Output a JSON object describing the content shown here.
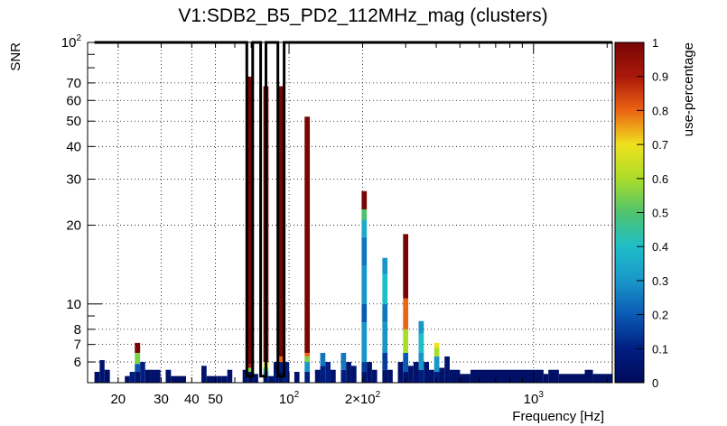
{
  "chart_data": {
    "type": "heatmap",
    "title": "V1:SDB2_B5_PD2_112MHz_mag (clusters)",
    "xlabel": "Frequency [Hz]",
    "ylabel": "SNR",
    "zlabel": "use-percentage",
    "x_scale": "log",
    "y_scale": "log",
    "xlim": [
      15,
      2100
    ],
    "ylim": [
      5,
      100
    ],
    "zlim": [
      0,
      1
    ],
    "grid": true,
    "x_ticks": [
      {
        "value": 20,
        "label": "20"
      },
      {
        "value": 30,
        "label": "30"
      },
      {
        "value": 40,
        "label": "40"
      },
      {
        "value": 50,
        "label": "50"
      },
      {
        "value": 100,
        "label": "10",
        "exp": "2"
      },
      {
        "value": 200,
        "label": "2×10",
        "exp": "2"
      },
      {
        "value": 1000,
        "label": "10",
        "exp": "3"
      }
    ],
    "y_ticks": [
      {
        "value": 6,
        "label": "6"
      },
      {
        "value": 7,
        "label": "7"
      },
      {
        "value": 8,
        "label": "8"
      },
      {
        "value": 10,
        "label": "10"
      },
      {
        "value": 20,
        "label": "20"
      },
      {
        "value": 30,
        "label": "30"
      },
      {
        "value": 40,
        "label": "40"
      },
      {
        "value": 50,
        "label": "50"
      },
      {
        "value": 60,
        "label": "60"
      },
      {
        "value": 70,
        "label": "70"
      },
      {
        "value": 100,
        "label": "10",
        "exp": "2"
      }
    ],
    "z_ticks": [
      0,
      0.1,
      0.2,
      0.3,
      0.4,
      0.5,
      0.6,
      0.7,
      0.8,
      0.9,
      1
    ],
    "columns": [
      {
        "x": [
          16.0,
          16.8
        ],
        "cells": [
          [
            5,
            5.5,
            0.03
          ]
        ]
      },
      {
        "x": [
          16.8,
          17.6
        ],
        "cells": [
          [
            5,
            6.1,
            0.05
          ]
        ]
      },
      {
        "x": [
          17.6,
          18.5
        ],
        "cells": [
          [
            5,
            5.6,
            0.03
          ]
        ]
      },
      {
        "x": [
          21.3,
          22.3
        ],
        "cells": [
          [
            5,
            5.3,
            0.03
          ]
        ]
      },
      {
        "x": [
          22.3,
          23.4
        ],
        "cells": [
          [
            5,
            5.5,
            0.1
          ]
        ]
      },
      {
        "x": [
          23.4,
          24.6
        ],
        "cells": [
          [
            5,
            5.5,
            0.05
          ],
          [
            5.5,
            5.9,
            0.2
          ],
          [
            5.9,
            6.5,
            0.55
          ],
          [
            6.5,
            7.1,
            1.0
          ]
        ]
      },
      {
        "x": [
          24.6,
          25.8
        ],
        "cells": [
          [
            5,
            6.0,
            0.1
          ]
        ]
      },
      {
        "x": [
          25.8,
          27.1
        ],
        "cells": [
          [
            5,
            5.6,
            0.03
          ]
        ]
      },
      {
        "x": [
          27.1,
          29.8
        ],
        "cells": [
          [
            5,
            5.6,
            0.04
          ]
        ]
      },
      {
        "x": [
          31.3,
          32.9
        ],
        "cells": [
          [
            5,
            5.6,
            0.04
          ]
        ]
      },
      {
        "x": [
          32.9,
          37.9
        ],
        "cells": [
          [
            5,
            5.3,
            0.03
          ]
        ]
      },
      {
        "x": [
          43.8,
          46.0
        ],
        "cells": [
          [
            5,
            5.8,
            0.04
          ]
        ]
      },
      {
        "x": [
          46.0,
          50.7
        ],
        "cells": [
          [
            5,
            5.3,
            0.03
          ]
        ]
      },
      {
        "x": [
          50.7,
          53.2
        ],
        "cells": [
          [
            5,
            5.3,
            0.03
          ]
        ]
      },
      {
        "x": [
          53.2,
          55.9
        ],
        "cells": [
          [
            5,
            5.3,
            0.03
          ]
        ]
      },
      {
        "x": [
          55.9,
          58.6
        ],
        "cells": [
          [
            5,
            5.6,
            0.04
          ]
        ]
      },
      {
        "x": [
          64.6,
          67.8
        ],
        "cells": [
          [
            5,
            5.6,
            0.05
          ]
        ]
      },
      {
        "x": [
          67.8,
          71.2
        ],
        "cells": [
          [
            5,
            5.5,
            0.04
          ],
          [
            5.5,
            5.7,
            0.55
          ],
          [
            5.7,
            5.9,
            0.9
          ],
          [
            5.9,
            74,
            1.0
          ]
        ]
      },
      {
        "x": [
          71.2,
          74.8
        ],
        "cells": [
          [
            5,
            5.4,
            0.03
          ]
        ]
      },
      {
        "x": [
          78.5,
          82.4
        ],
        "cells": [
          [
            5,
            5.3,
            0.1
          ],
          [
            5.3,
            5.5,
            0.3
          ],
          [
            5.5,
            5.7,
            0.5
          ],
          [
            5.7,
            6.0,
            0.7
          ],
          [
            6.0,
            68,
            1.0
          ]
        ]
      },
      {
        "x": [
          82.4,
          86.5
        ],
        "cells": [
          [
            5,
            5.3,
            0.03
          ]
        ]
      },
      {
        "x": [
          86.5,
          90.8
        ],
        "cells": [
          [
            5,
            5.5,
            0.1
          ],
          [
            5.5,
            6.0,
            0.04
          ]
        ]
      },
      {
        "x": [
          90.8,
          95.3
        ],
        "cells": [
          [
            5,
            5.5,
            0.04
          ],
          [
            5.5,
            6.0,
            0.1
          ],
          [
            6.0,
            6.3,
            0.8
          ],
          [
            6.3,
            68,
            1.0
          ]
        ]
      },
      {
        "x": [
          95.3,
          100.1
        ],
        "cells": [
          [
            5,
            6.0,
            0.1
          ]
        ]
      },
      {
        "x": [
          105.1,
          110.3
        ],
        "cells": [
          [
            5,
            5.5,
            0.04
          ]
        ]
      },
      {
        "x": [
          115.8,
          121.6
        ],
        "cells": [
          [
            5,
            5.5,
            0.1
          ],
          [
            5.5,
            6.0,
            0.3
          ],
          [
            6.0,
            6.3,
            0.55
          ],
          [
            6.3,
            6.5,
            0.8
          ],
          [
            6.5,
            52,
            1.0
          ]
        ]
      },
      {
        "x": [
          127.7,
          134.1
        ],
        "cells": [
          [
            5,
            5.6,
            0.04
          ]
        ]
      },
      {
        "x": [
          134.1,
          140.8
        ],
        "cells": [
          [
            5,
            5.8,
            0.1
          ],
          [
            5.8,
            6.5,
            0.25
          ]
        ]
      },
      {
        "x": [
          140.8,
          147.8
        ],
        "cells": [
          [
            5,
            6.0,
            0.1
          ]
        ]
      },
      {
        "x": [
          147.8,
          155.2
        ],
        "cells": [
          [
            5,
            5.6,
            0.04
          ]
        ]
      },
      {
        "x": [
          163.0,
          171.1
        ],
        "cells": [
          [
            5,
            5.6,
            0.1
          ],
          [
            5.6,
            6.5,
            0.25
          ]
        ]
      },
      {
        "x": [
          171.1,
          179.7
        ],
        "cells": [
          [
            5,
            6.0,
            0.05
          ]
        ]
      },
      {
        "x": [
          179.7,
          188.7
        ],
        "cells": [
          [
            5,
            5.8,
            0.04
          ]
        ]
      },
      {
        "x": [
          198.1,
          208.0
        ],
        "cells": [
          [
            5,
            5.5,
            0.05
          ],
          [
            5.5,
            6.0,
            0.15
          ],
          [
            6.0,
            8.5,
            0.3
          ],
          [
            8.5,
            10,
            0.2
          ],
          [
            10,
            14,
            0.3
          ],
          [
            14,
            18,
            0.25
          ],
          [
            18,
            21,
            0.35
          ],
          [
            21,
            23,
            0.5
          ],
          [
            23,
            27,
            1.0
          ]
        ]
      },
      {
        "x": [
          208.0,
          218.4
        ],
        "cells": [
          [
            5,
            6.0,
            0.04
          ]
        ]
      },
      {
        "x": [
          218.4,
          229.3
        ],
        "cells": [
          [
            5,
            5.6,
            0.04
          ]
        ]
      },
      {
        "x": [
          240.8,
          252.8
        ],
        "cells": [
          [
            5,
            5.6,
            0.05
          ],
          [
            5.6,
            6.5,
            0.15
          ],
          [
            6.5,
            8.5,
            0.3
          ],
          [
            8.5,
            10,
            0.25
          ],
          [
            10,
            13,
            0.4
          ],
          [
            13,
            15,
            0.3
          ]
        ]
      },
      {
        "x": [
          252.8,
          265.5
        ],
        "cells": [
          [
            5,
            5.6,
            0.04
          ]
        ]
      },
      {
        "x": [
          278.8,
          292.7
        ],
        "cells": [
          [
            5,
            6.0,
            0.04
          ]
        ]
      },
      {
        "x": [
          292.7,
          307.3
        ],
        "cells": [
          [
            5,
            5.5,
            0.05
          ],
          [
            5.5,
            6.5,
            0.2
          ],
          [
            6.5,
            8.0,
            0.6
          ],
          [
            8.0,
            10.5,
            0.8
          ],
          [
            10.5,
            18.5,
            1.0
          ]
        ]
      },
      {
        "x": [
          307.3,
          322.7
        ],
        "cells": [
          [
            5,
            5.8,
            0.04
          ]
        ]
      },
      {
        "x": [
          322.7,
          338.8
        ],
        "cells": [
          [
            5,
            6.0,
            0.04
          ]
        ]
      },
      {
        "x": [
          338.8,
          355.8
        ],
        "cells": [
          [
            5,
            5.6,
            0.1
          ],
          [
            5.6,
            6.5,
            0.3
          ],
          [
            6.5,
            7.7,
            0.4
          ],
          [
            7.7,
            8.6,
            0.3
          ]
        ]
      },
      {
        "x": [
          355.8,
          373.6
        ],
        "cells": [
          [
            5,
            6.0,
            0.05
          ]
        ]
      },
      {
        "x": [
          373.6,
          392.3
        ],
        "cells": [
          [
            5,
            5.6,
            0.04
          ]
        ]
      },
      {
        "x": [
          392.3,
          411.9
        ],
        "cells": [
          [
            5,
            5.5,
            0.1
          ],
          [
            5.5,
            6.3,
            0.3
          ],
          [
            6.3,
            6.8,
            0.6
          ],
          [
            6.8,
            7.1,
            0.7
          ]
        ]
      },
      {
        "x": [
          411.9,
          432.5
        ],
        "cells": [
          [
            5,
            5.7,
            0.04
          ]
        ]
      },
      {
        "x": [
          432.5,
          454.1
        ],
        "cells": [
          [
            5,
            6.3,
            0.04
          ]
        ]
      },
      {
        "x": [
          454.1,
          500.7
        ],
        "cells": [
          [
            5,
            5.6,
            0.04
          ]
        ]
      },
      {
        "x": [
          500.7,
          552.0
        ],
        "cells": [
          [
            5,
            5.4,
            0.03
          ]
        ]
      },
      {
        "x": [
          552.0,
          1099.0
        ],
        "cells": [
          [
            5,
            5.6,
            0.03
          ]
        ]
      },
      {
        "x": [
          1099.0,
          1150.0
        ],
        "cells": [
          [
            5,
            5.4,
            0.03
          ]
        ]
      },
      {
        "x": [
          1150.0,
          1270.0
        ],
        "cells": [
          [
            5,
            5.6,
            0.03
          ]
        ]
      },
      {
        "x": [
          1270.0,
          1620.0
        ],
        "cells": [
          [
            5,
            5.4,
            0.03
          ]
        ]
      },
      {
        "x": [
          1620.0,
          1750.0
        ],
        "cells": [
          [
            5,
            5.6,
            0.03
          ]
        ]
      },
      {
        "x": [
          1750.0,
          2100.0
        ],
        "cells": [
          [
            5,
            5.4,
            0.03
          ]
        ]
      }
    ],
    "outline_segments": [
      [
        [
          16,
          100
        ],
        [
          67.2,
          100
        ],
        [
          67.2,
          5.3
        ],
        [
          71.0,
          5.3
        ],
        [
          71.0,
          100
        ],
        [
          76.5,
          100
        ],
        [
          76.5,
          5.3
        ],
        [
          80.5,
          5.3
        ],
        [
          80.5,
          100
        ],
        [
          90.0,
          100
        ],
        [
          90.0,
          5.3
        ],
        [
          95.5,
          5.3
        ],
        [
          95.5,
          100
        ],
        [
          2100,
          100
        ]
      ]
    ]
  }
}
